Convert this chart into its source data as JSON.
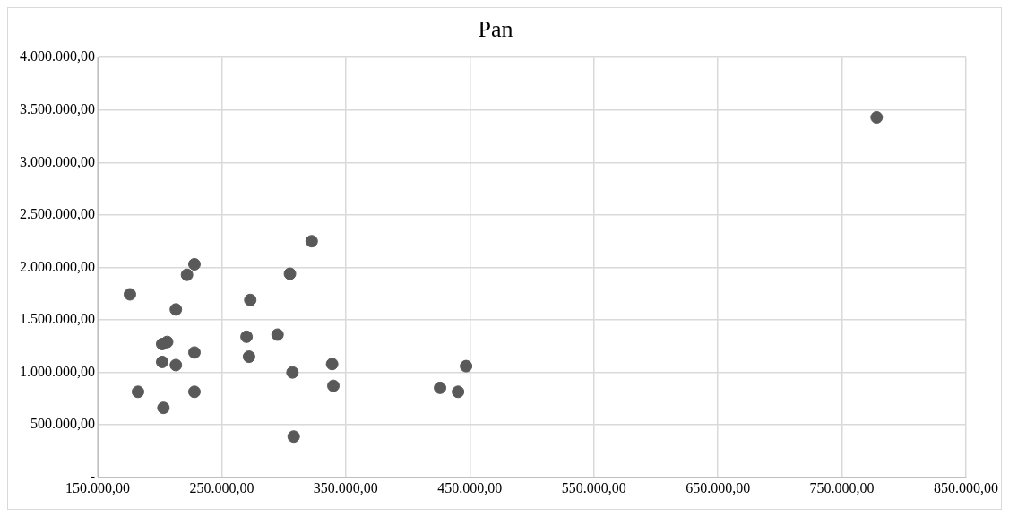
{
  "chart_data": {
    "type": "scatter",
    "title": "Pan",
    "x": [
      176000,
      182500,
      203000,
      202000,
      202000,
      206000,
      213000,
      213000,
      222000,
      228000,
      228000,
      228000,
      273000,
      272000,
      270000,
      295000,
      305000,
      307000,
      308000,
      322500,
      339000,
      340000,
      426000,
      440500,
      447000,
      778000
    ],
    "values": [
      1744000,
      815000,
      663000,
      1100000,
      1270000,
      1290000,
      1070000,
      1600000,
      1930000,
      2030000,
      1190000,
      815000,
      1690000,
      1150000,
      1340000,
      1360000,
      1940000,
      1000000,
      389000,
      2250000,
      1080000,
      872000,
      853000,
      815000,
      1060000,
      3430000
    ],
    "color": "#595959",
    "marker": "circle",
    "grid": true,
    "legend": false,
    "xlim": [
      150000,
      850000
    ],
    "ylim": [
      0,
      4000000
    ],
    "xticks": [
      {
        "value": 150000,
        "label": "150.000,00"
      },
      {
        "value": 250000,
        "label": "250.000,00"
      },
      {
        "value": 350000,
        "label": "350.000,00"
      },
      {
        "value": 450000,
        "label": "450.000,00"
      },
      {
        "value": 550000,
        "label": "550.000,00"
      },
      {
        "value": 650000,
        "label": "650.000,00"
      },
      {
        "value": 750000,
        "label": "750.000,00"
      },
      {
        "value": 850000,
        "label": "850.000,00"
      }
    ],
    "yticks": [
      {
        "value": 0,
        "label": "-"
      },
      {
        "value": 500000,
        "label": "500.000,00"
      },
      {
        "value": 1000000,
        "label": "1.000.000,00"
      },
      {
        "value": 1500000,
        "label": "1.500.000,00"
      },
      {
        "value": 2000000,
        "label": "2.000.000,00"
      },
      {
        "value": 2500000,
        "label": "2.500.000,00"
      },
      {
        "value": 3000000,
        "label": "3.000.000,00"
      },
      {
        "value": 3500000,
        "label": "3.500.000,00"
      },
      {
        "value": 4000000,
        "label": "4.000.000,00"
      }
    ]
  }
}
